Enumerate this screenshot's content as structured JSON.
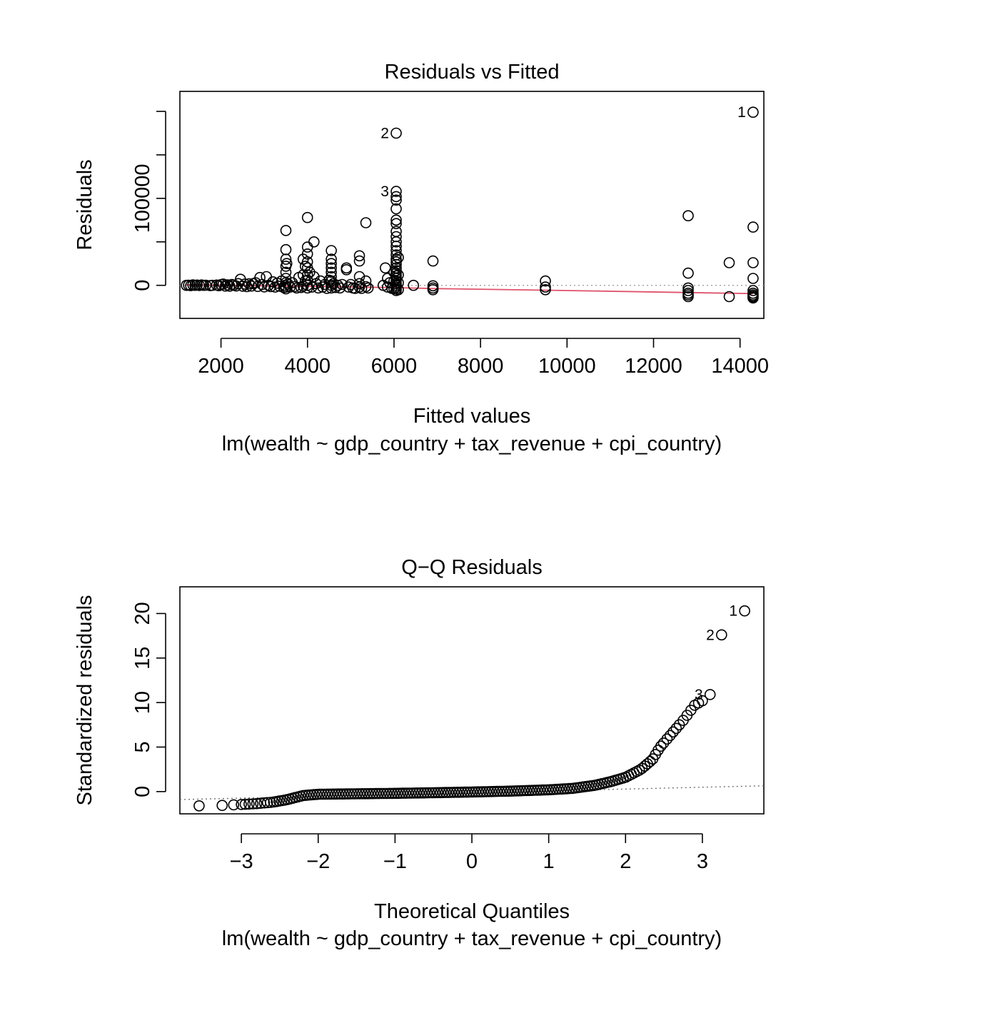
{
  "chart_data": [
    {
      "type": "scatter",
      "title": "Residuals vs Fitted",
      "xlabel": "Fitted values",
      "sublabel": "lm(wealth ~ gdp_country + tax_revenue + cpi_country)",
      "ylabel": "Residuals",
      "xlim": [
        1050,
        14550
      ],
      "ylim": [
        -38000,
        223000
      ],
      "x_ticks": [
        2000,
        4000,
        6000,
        8000,
        10000,
        12000,
        14000
      ],
      "y_ticks": [
        0,
        50000,
        100000,
        150000,
        200000
      ],
      "y_tick_labels": [
        "0",
        "",
        "100000",
        "",
        ""
      ],
      "reference_line": {
        "y": 0,
        "style": "dotted",
        "color": "#a0a0a0"
      },
      "smooth_color": "#df536b",
      "smooth": [
        [
          1200,
          500
        ],
        [
          2000,
          0
        ],
        [
          3000,
          -600
        ],
        [
          4000,
          -1100
        ],
        [
          5000,
          -1800
        ],
        [
          6000,
          -2600
        ],
        [
          7000,
          -3800
        ],
        [
          9500,
          -5600
        ],
        [
          12800,
          -8300
        ],
        [
          14300,
          -9500
        ]
      ],
      "labels": [
        {
          "text": "1",
          "x": 14300,
          "y": 199000
        },
        {
          "text": "2",
          "x": 6050,
          "y": 175000
        },
        {
          "text": "3",
          "x": 6050,
          "y": 108000
        }
      ],
      "points": [
        [
          1200,
          0
        ],
        [
          1250,
          200
        ],
        [
          1300,
          -300
        ],
        [
          1350,
          500
        ],
        [
          1400,
          0
        ],
        [
          1450,
          300
        ],
        [
          1500,
          -200
        ],
        [
          1550,
          400
        ],
        [
          1600,
          0
        ],
        [
          1650,
          200
        ],
        [
          1750,
          -300
        ],
        [
          1800,
          0
        ],
        [
          1900,
          300
        ],
        [
          1950,
          -400
        ],
        [
          2000,
          800
        ],
        [
          2050,
          1500
        ],
        [
          2100,
          -800
        ],
        [
          2150,
          500
        ],
        [
          2200,
          -900
        ],
        [
          2250,
          1000
        ],
        [
          2300,
          300
        ],
        [
          2350,
          -700
        ],
        [
          2400,
          2000
        ],
        [
          2450,
          7000
        ],
        [
          2500,
          -1000
        ],
        [
          2550,
          1500
        ],
        [
          2600,
          -1500
        ],
        [
          2650,
          1800
        ],
        [
          2700,
          -800
        ],
        [
          2750,
          2000
        ],
        [
          2800,
          3000
        ],
        [
          2850,
          -1200
        ],
        [
          2900,
          9000
        ],
        [
          2950,
          1000
        ],
        [
          3000,
          -1800
        ],
        [
          3050,
          10000
        ],
        [
          3100,
          0
        ],
        [
          3150,
          -1500
        ],
        [
          3200,
          4000
        ],
        [
          3250,
          -2000
        ],
        [
          3300,
          2500
        ],
        [
          3350,
          -1000
        ],
        [
          3400,
          5000
        ],
        [
          3450,
          -2500
        ],
        [
          3480,
          0
        ],
        [
          3500,
          63000
        ],
        [
          3500,
          41000
        ],
        [
          3500,
          30000
        ],
        [
          3500,
          22000
        ],
        [
          3500,
          15000
        ],
        [
          3500,
          8000
        ],
        [
          3500,
          3000
        ],
        [
          3500,
          -2000
        ],
        [
          3500,
          -4000
        ],
        [
          3520,
          25000
        ],
        [
          3550,
          1500
        ],
        [
          3600,
          -2000
        ],
        [
          3650,
          3000
        ],
        [
          3700,
          -1500
        ],
        [
          3750,
          -3000
        ],
        [
          3800,
          9000
        ],
        [
          3850,
          -2500
        ],
        [
          3900,
          30000
        ],
        [
          3900,
          12000
        ],
        [
          3900,
          -1000
        ],
        [
          3950,
          22000
        ],
        [
          3950,
          5000
        ],
        [
          4000,
          78000
        ],
        [
          4000,
          44000
        ],
        [
          4000,
          36000
        ],
        [
          4000,
          27000
        ],
        [
          4000,
          20000
        ],
        [
          4000,
          12000
        ],
        [
          4000,
          6000
        ],
        [
          4000,
          0
        ],
        [
          4000,
          -3000
        ],
        [
          4050,
          15000
        ],
        [
          4100,
          -2000
        ],
        [
          4150,
          50000
        ],
        [
          4150,
          10000
        ],
        [
          4200,
          2000
        ],
        [
          4250,
          -3000
        ],
        [
          4300,
          5000
        ],
        [
          4350,
          -2000
        ],
        [
          4400,
          1000
        ],
        [
          4450,
          -3500
        ],
        [
          4500,
          6000
        ],
        [
          4550,
          40000
        ],
        [
          4550,
          30000
        ],
        [
          4550,
          25000
        ],
        [
          4550,
          20000
        ],
        [
          4550,
          15000
        ],
        [
          4550,
          10000
        ],
        [
          4550,
          5000
        ],
        [
          4550,
          0
        ],
        [
          4550,
          -3000
        ],
        [
          4600,
          2000
        ],
        [
          4650,
          -2500
        ],
        [
          4700,
          0
        ],
        [
          4750,
          -3000
        ],
        [
          4800,
          1000
        ],
        [
          4900,
          20000
        ],
        [
          4900,
          18000
        ],
        [
          4950,
          -2000
        ],
        [
          5000,
          1000
        ],
        [
          5050,
          -3000
        ],
        [
          5100,
          -3500
        ],
        [
          5200,
          34000
        ],
        [
          5200,
          28000
        ],
        [
          5200,
          10000
        ],
        [
          5200,
          2000
        ],
        [
          5200,
          -2000
        ],
        [
          5250,
          -3500
        ],
        [
          5350,
          72000
        ],
        [
          5350,
          5000
        ],
        [
          5350,
          -1500
        ],
        [
          5400,
          -3000
        ],
        [
          5750,
          0
        ],
        [
          5800,
          20000
        ],
        [
          5850,
          8000
        ],
        [
          5850,
          -2000
        ],
        [
          5900,
          3000
        ],
        [
          5950,
          -3500
        ],
        [
          6000,
          15000
        ],
        [
          6000,
          5000
        ],
        [
          6000,
          -4000
        ],
        [
          6050,
          175000
        ],
        [
          6050,
          108000
        ],
        [
          6050,
          102000
        ],
        [
          6050,
          98000
        ],
        [
          6050,
          88000
        ],
        [
          6050,
          75000
        ],
        [
          6050,
          71000
        ],
        [
          6050,
          62000
        ],
        [
          6050,
          56000
        ],
        [
          6050,
          50000
        ],
        [
          6050,
          45000
        ],
        [
          6050,
          40000
        ],
        [
          6050,
          35000
        ],
        [
          6050,
          30000
        ],
        [
          6050,
          27000
        ],
        [
          6050,
          24000
        ],
        [
          6050,
          20000
        ],
        [
          6050,
          17000
        ],
        [
          6050,
          14000
        ],
        [
          6050,
          11000
        ],
        [
          6050,
          8000
        ],
        [
          6050,
          5000
        ],
        [
          6050,
          2000
        ],
        [
          6050,
          0
        ],
        [
          6050,
          -2000
        ],
        [
          6050,
          -4000
        ],
        [
          6050,
          -6000
        ],
        [
          6100,
          32000
        ],
        [
          6100,
          12000
        ],
        [
          6100,
          3000
        ],
        [
          6100,
          -5000
        ],
        [
          6450,
          0
        ],
        [
          6900,
          28000
        ],
        [
          6900,
          -500
        ],
        [
          6900,
          -3000
        ],
        [
          6900,
          -5000
        ],
        [
          9500,
          5000
        ],
        [
          9500,
          -2000
        ],
        [
          9500,
          -5000
        ],
        [
          12800,
          80000
        ],
        [
          12800,
          14000
        ],
        [
          12800,
          -3000
        ],
        [
          12800,
          -6000
        ],
        [
          12800,
          -9000
        ],
        [
          12800,
          -11000
        ],
        [
          12800,
          -13000
        ],
        [
          13750,
          26000
        ],
        [
          13750,
          -13000
        ],
        [
          14300,
          199000
        ],
        [
          14300,
          67000
        ],
        [
          14300,
          26000
        ],
        [
          14300,
          8000
        ],
        [
          14300,
          -6000
        ],
        [
          14300,
          -9000
        ],
        [
          14300,
          -11000
        ],
        [
          14300,
          -12500
        ],
        [
          14300,
          -13500
        ],
        [
          14300,
          -14500
        ]
      ]
    },
    {
      "type": "scatter",
      "title": "Q−Q Residuals",
      "xlabel": "Theoretical Quantiles",
      "sublabel": "lm(wealth ~ gdp_country + tax_revenue + cpi_country)",
      "ylabel": "Standardized residuals",
      "xlim": [
        -3.8,
        3.8
      ],
      "ylim": [
        -2.5,
        23
      ],
      "x_ticks": [
        -3,
        -2,
        -1,
        0,
        1,
        2,
        3
      ],
      "x_tick_labels": [
        "−3",
        "−2",
        "−1",
        "0",
        "1",
        "2",
        "3"
      ],
      "y_ticks": [
        0,
        5,
        10,
        15,
        20
      ],
      "reference_line": {
        "points": [
          [
            -3.8,
            -0.9
          ],
          [
            3.8,
            0.65
          ]
        ],
        "style": "dotted",
        "color": "#707070"
      },
      "labels": [
        {
          "text": "1",
          "x": 3.55,
          "y": 20.3
        },
        {
          "text": "2",
          "x": 3.25,
          "y": 17.6
        },
        {
          "text": "3",
          "x": 3.1,
          "y": 10.9
        }
      ],
      "curve": [
        [
          -3.55,
          -1.6
        ],
        [
          -3.25,
          -1.55
        ],
        [
          -3.0,
          -1.45
        ],
        [
          -2.8,
          -1.35
        ],
        [
          -2.6,
          -1.2
        ],
        [
          -2.4,
          -0.9
        ],
        [
          -2.2,
          -0.45
        ],
        [
          -2.0,
          -0.3
        ],
        [
          -1.5,
          -0.25
        ],
        [
          -1.0,
          -0.2
        ],
        [
          -0.5,
          -0.13
        ],
        [
          0.0,
          -0.05
        ],
        [
          0.5,
          0.05
        ],
        [
          1.0,
          0.2
        ],
        [
          1.3,
          0.35
        ],
        [
          1.6,
          0.7
        ],
        [
          1.8,
          1.1
        ],
        [
          2.0,
          1.6
        ],
        [
          2.2,
          2.5
        ],
        [
          2.35,
          3.6
        ],
        [
          2.45,
          5.0
        ],
        [
          2.6,
          6.5
        ],
        [
          2.75,
          8.0
        ],
        [
          2.9,
          9.7
        ],
        [
          3.0,
          10.2
        ],
        [
          3.1,
          10.9
        ],
        [
          3.25,
          17.6
        ],
        [
          3.55,
          20.3
        ]
      ]
    }
  ]
}
